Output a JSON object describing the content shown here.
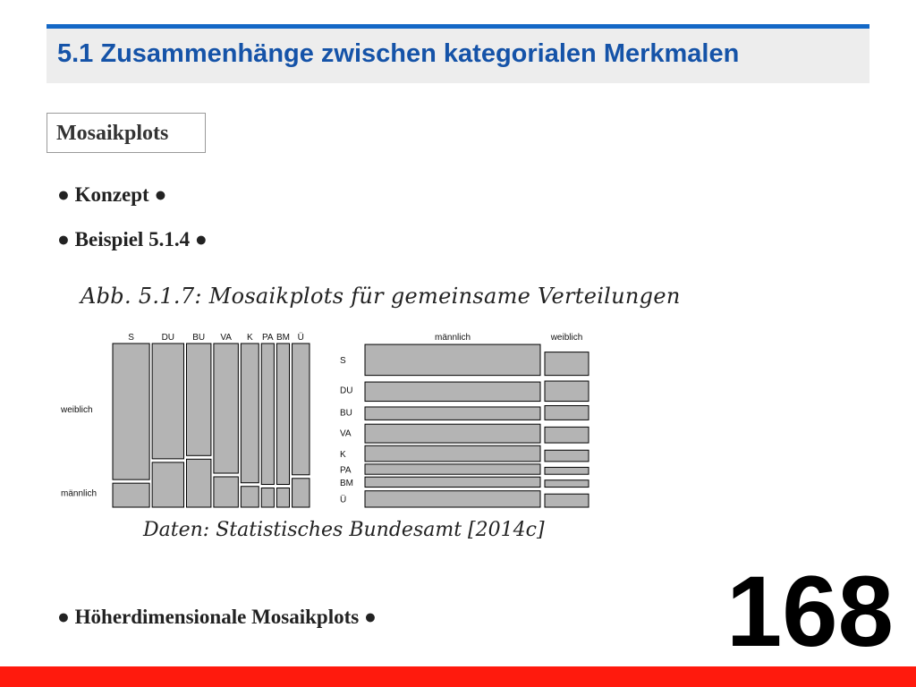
{
  "header": {
    "title": "5.1 Zusammenhänge zwischen kategorialen Merkmalen"
  },
  "section": {
    "label": "Mosaikplots"
  },
  "bullets": {
    "konzept": "● Konzept ●",
    "beispiel": "● Beispiel 5.1.4 ●",
    "hoeher": "● Höherdimensionale Mosaikplots ●"
  },
  "figure": {
    "caption": "Abb. 5.1.7: Mosaikplots für gemeinsame Verteilungen",
    "source": "Daten: Statistisches Bundesamt [2014c]"
  },
  "page_number": "168",
  "colors": {
    "title": "#1553a8",
    "title_rule": "#1468c6",
    "tile_fill": "#b4b4b4",
    "bottom_bar": "#ff1a0d"
  },
  "chart_data": [
    {
      "type": "mosaic",
      "x_categories": [
        "S",
        "DU",
        "BU",
        "VA",
        "K",
        "PA",
        "BM",
        "Ü"
      ],
      "y_categories": [
        "weiblich",
        "männlich"
      ],
      "x_proportions": [
        0.186,
        0.16,
        0.124,
        0.124,
        0.09,
        0.064,
        0.064,
        0.088
      ],
      "conditional": {
        "weiblich": [
          0.85,
          0.72,
          0.7,
          0.81,
          0.87,
          0.88,
          0.88,
          0.82
        ]
      }
    },
    {
      "type": "mosaic",
      "x_categories": [
        "männlich",
        "weiblich"
      ],
      "y_categories": [
        "S",
        "DU",
        "BU",
        "VA",
        "K",
        "PA",
        "BM",
        "Ü"
      ],
      "x_proportions": [
        0.8,
        0.2
      ],
      "row_proportions": [
        0.22,
        0.16,
        0.11,
        0.14,
        0.11,
        0.07,
        0.07,
        0.12
      ],
      "conditional": {
        "männlich": [
          0.82,
          0.68,
          0.66,
          0.77,
          0.84,
          0.86,
          0.86,
          0.79
        ]
      }
    }
  ]
}
